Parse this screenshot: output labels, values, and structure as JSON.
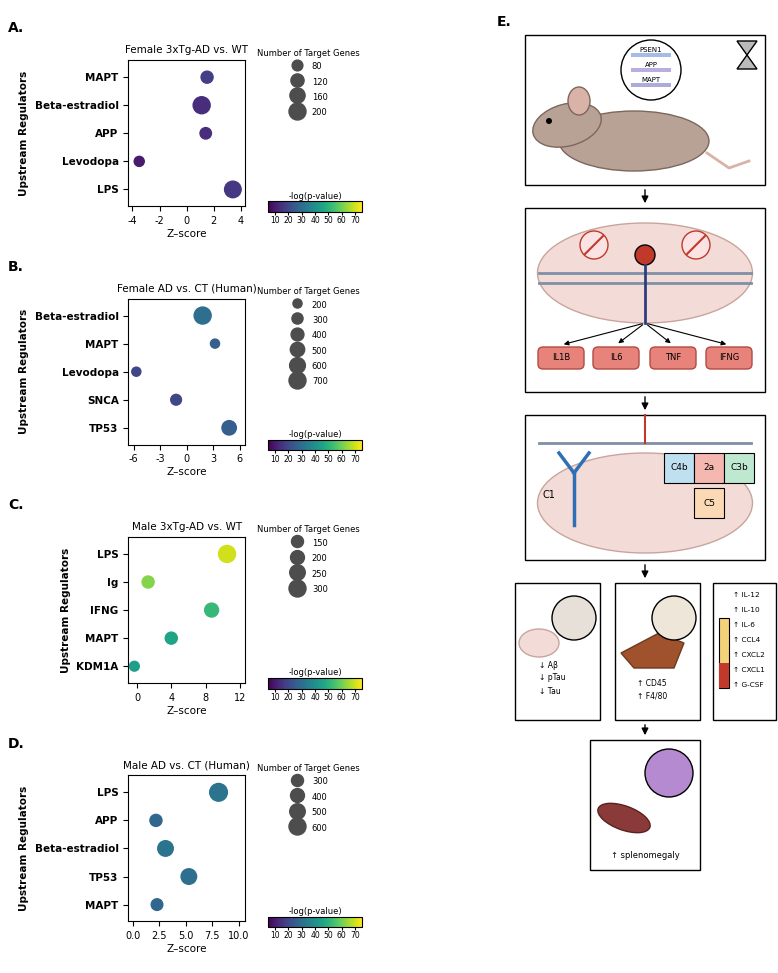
{
  "chart_data": [
    {
      "type": "scatter",
      "panel": "A.",
      "title": "Female 3xTg-AD vs. WT",
      "x_label": "Z–score",
      "y_label": "Upstream Regulators",
      "categories": [
        "MAPT",
        "Beta-estradiol",
        "APP",
        "Levodopa",
        "LPS"
      ],
      "values": [
        1.5,
        1.1,
        1.4,
        -3.5,
        3.4
      ],
      "sizes": [
        100,
        200,
        90,
        70,
        190
      ],
      "neg_log_p": [
        18,
        14,
        14,
        10,
        16
      ],
      "xlim": [
        -4.3,
        4.3
      ],
      "xticks": [
        -4,
        -2,
        0,
        2,
        4
      ],
      "grid": false,
      "size_legend": {
        "title": "Number of Target Genes",
        "values": [
          80,
          120,
          160,
          200
        ]
      },
      "colorbar": {
        "label": "-log(p-value)",
        "range": [
          5,
          75
        ],
        "ticks": [
          10,
          20,
          30,
          40,
          50,
          60,
          70
        ]
      }
    },
    {
      "type": "scatter",
      "panel": "B.",
      "title": "Female AD vs. CT (Human)",
      "x_label": "Z–score",
      "y_label": "Upstream Regulators",
      "categories": [
        "Beta-estradiol",
        "MAPT",
        "Levodopa",
        "SNCA",
        "TP53"
      ],
      "values": [
        1.8,
        3.2,
        -5.7,
        -1.2,
        4.8
      ],
      "sizes": [
        700,
        200,
        200,
        280,
        500
      ],
      "neg_log_p": [
        30,
        26,
        20,
        20,
        26
      ],
      "xlim": [
        -6.6,
        6.6
      ],
      "xticks": [
        -6,
        -3,
        0,
        3,
        6
      ],
      "grid": false,
      "size_legend": {
        "title": "Number of Target Genes",
        "values": [
          200,
          300,
          400,
          500,
          600,
          700
        ]
      },
      "colorbar": {
        "label": "-log(p-value)",
        "range": [
          5,
          75
        ],
        "ticks": [
          10,
          20,
          30,
          40,
          50,
          60,
          70
        ]
      }
    },
    {
      "type": "scatter",
      "panel": "C.",
      "title": "Male 3xTg-AD vs. WT",
      "x_label": "Z–score",
      "y_label": "Upstream Regulators",
      "categories": [
        "LPS",
        "Ig",
        "IFNG",
        "MAPT",
        "KDM1A"
      ],
      "values": [
        10.5,
        1.3,
        8.7,
        4.0,
        -0.3
      ],
      "sizes": [
        300,
        150,
        200,
        150,
        100
      ],
      "neg_log_p": [
        70,
        62,
        52,
        46,
        44
      ],
      "xlim": [
        -1.0,
        12.6
      ],
      "xticks": [
        0,
        4,
        8,
        12
      ],
      "grid": false,
      "size_legend": {
        "title": "Number of Target Genes",
        "values": [
          150,
          200,
          250,
          300
        ]
      },
      "colorbar": {
        "label": "-log(p-value)",
        "range": [
          5,
          75
        ],
        "ticks": [
          10,
          20,
          30,
          40,
          50,
          60,
          70
        ]
      }
    },
    {
      "type": "scatter",
      "panel": "D.",
      "title": "Male AD vs. CT (Human)",
      "x_label": "Z–score",
      "y_label": "Upstream Regulators",
      "categories": [
        "LPS",
        "APP",
        "Beta-estradiol",
        "TP53",
        "MAPT"
      ],
      "values": [
        8.1,
        2.2,
        3.1,
        5.3,
        2.3
      ],
      "sizes": [
        650,
        300,
        500,
        500,
        280
      ],
      "neg_log_p": [
        32,
        28,
        32,
        30,
        28
      ],
      "xlim": [
        -0.4,
        10.6
      ],
      "xticks": [
        {
          "value": 0,
          "label": "0.0"
        },
        {
          "value": 2.5,
          "label": "2.5"
        },
        {
          "value": 5,
          "label": "5.0"
        },
        {
          "value": 7.5,
          "label": "7.5"
        },
        {
          "value": 10,
          "label": "10.0"
        }
      ],
      "grid": false,
      "size_legend": {
        "title": "Number of Target Genes",
        "values": [
          300,
          400,
          500,
          600
        ]
      },
      "colorbar": {
        "label": "-log(p-value)",
        "range": [
          5,
          75
        ],
        "ticks": [
          10,
          20,
          30,
          40,
          50,
          60,
          70
        ]
      }
    }
  ],
  "diagram": {
    "label": "E.",
    "genes": [
      "PSEN1",
      "APP",
      "MAPT"
    ],
    "cytokines": [
      "IL1B",
      "IL6",
      "TNF",
      "IFNG"
    ],
    "complement": {
      "initiator": "C1",
      "components": [
        "C4b",
        "2a",
        "C3b",
        "C5"
      ]
    },
    "outcomes": {
      "brain": [
        "↓ Aβ",
        "↓ pTau",
        "↓ Tau"
      ],
      "liver": [
        "↑ CD45",
        "↑ F4/80"
      ],
      "serum": [
        "↑ IL-12",
        "↑ IL-10",
        "↑ IL-6",
        "↑ CCL4",
        "↑ CXCL2",
        "↑ CXCL1",
        "↑ G-CSF"
      ]
    },
    "spleen": "↑ splenomegaly"
  }
}
